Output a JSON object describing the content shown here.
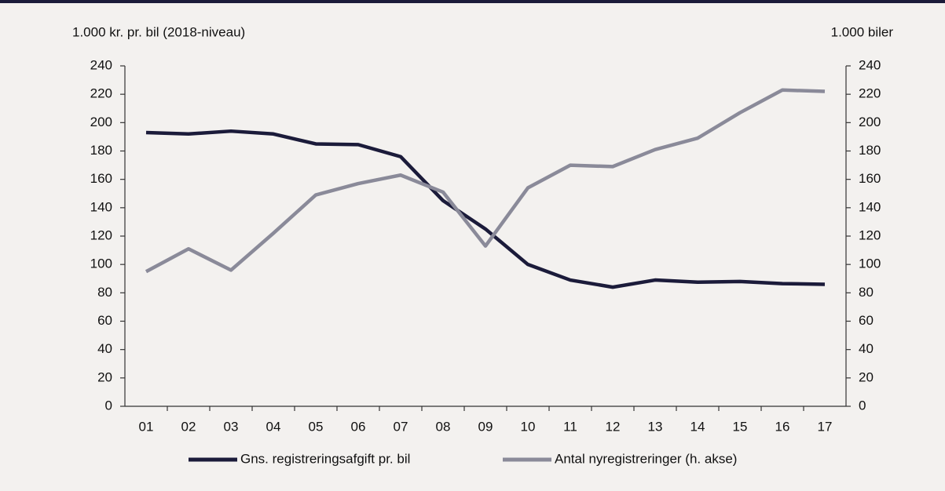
{
  "chart_data": {
    "type": "line",
    "y_label": "1.000 kr. pr. bil (2018-niveau)",
    "y2_label": "1.000 biler",
    "categories": [
      "01",
      "02",
      "03",
      "04",
      "05",
      "06",
      "07",
      "08",
      "09",
      "10",
      "11",
      "12",
      "13",
      "14",
      "15",
      "16",
      "17"
    ],
    "series": [
      {
        "name": "Gns. registreringsafgift pr. bil",
        "color": "#1b1b3a",
        "values": [
          193,
          192,
          194,
          192,
          185,
          184.5,
          176,
          145,
          125,
          100,
          89,
          84,
          89,
          87.5,
          88,
          86.5,
          86
        ]
      },
      {
        "name": "Antal nyregistreringer (h. akse)",
        "color": "#8a8a99",
        "axis": "y2",
        "values": [
          95,
          111,
          96,
          122,
          149,
          157,
          163,
          151,
          113,
          154,
          170,
          169,
          181,
          189,
          207,
          223,
          222
        ]
      }
    ],
    "ylim": [
      0,
      240
    ],
    "yticks": [
      0,
      20,
      40,
      60,
      80,
      100,
      120,
      140,
      160,
      180,
      200,
      220,
      240
    ],
    "y2lim": [
      0,
      240
    ],
    "y2ticks": [
      0,
      20,
      40,
      60,
      80,
      100,
      120,
      140,
      160,
      180,
      200,
      220,
      240
    ],
    "legend": "bottom"
  }
}
